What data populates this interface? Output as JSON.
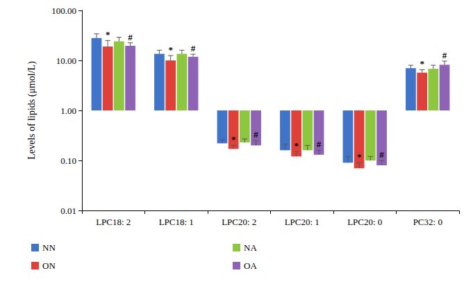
{
  "chart_data": {
    "type": "bar",
    "y_label": "Levels of lipids (μmol/L)",
    "categories": [
      "LPC18: 2",
      "LPC18: 1",
      "LPC20: 2",
      "LPC20: 1",
      "LPC20: 0",
      "PC32: 0"
    ],
    "series": [
      {
        "name": "NN",
        "color": "#4074c8",
        "values": [
          28,
          13.5,
          0.22,
          0.16,
          0.09,
          7.0
        ],
        "errors": [
          6,
          2.5,
          0.04,
          0.05,
          0.03,
          1.0
        ]
      },
      {
        "name": "ON",
        "color": "#e0403a",
        "values": [
          19,
          10,
          0.17,
          0.12,
          0.07,
          5.7
        ],
        "errors": [
          6,
          2.5,
          0.03,
          0.03,
          0.02,
          0.8
        ],
        "annotations": [
          "*",
          "*",
          "*",
          "*",
          "*",
          "*"
        ]
      },
      {
        "name": "NA",
        "color": "#8dc63f",
        "values": [
          24,
          13.5,
          0.23,
          0.16,
          0.1,
          6.8
        ],
        "errors": [
          5,
          2.5,
          0.04,
          0.04,
          0.02,
          1.2
        ]
      },
      {
        "name": "OA",
        "color": "#8e62b5",
        "values": [
          19.5,
          11.8,
          0.2,
          0.13,
          0.08,
          8.2
        ],
        "errors": [
          3,
          1.5,
          0.05,
          0.03,
          0.02,
          1.5
        ],
        "annotations": [
          "#",
          "#",
          "#",
          "#",
          "#",
          "#"
        ]
      }
    ],
    "log": "y",
    "ylim": [
      0.01,
      100
    ],
    "yticks": [
      0.01,
      {
        "value": 0.1,
        "label": "0.10"
      },
      {
        "value": 1,
        "label": "1.00"
      },
      {
        "value": 10,
        "label": "10.00"
      },
      {
        "value": 100,
        "label": "100.00"
      }
    ],
    "grid": false,
    "legend": "bottom"
  }
}
